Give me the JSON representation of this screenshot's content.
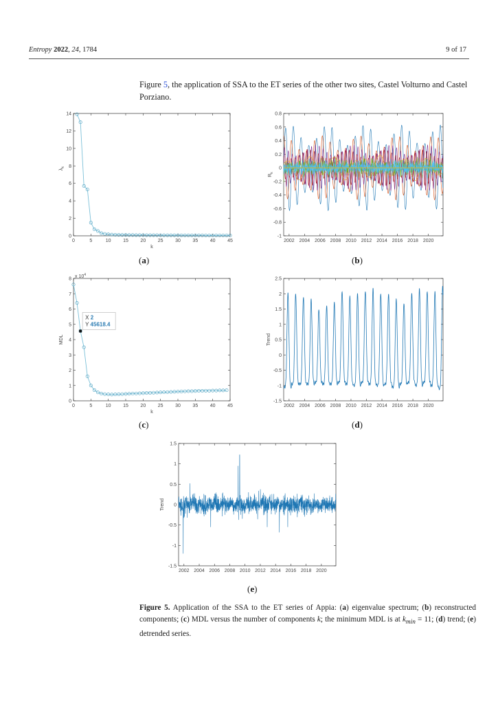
{
  "header": {
    "journal": "Entropy",
    "year": "2022",
    "volume": "24",
    "article": "1784",
    "page": "9 of 17"
  },
  "intro": {
    "before_link": "Figure ",
    "link": "5",
    "after_link": ", the application of SSA to the ET series of the other two sites, Castel Volturno and Castel Porziano."
  },
  "subfigure_labels": [
    "a",
    "b",
    "c",
    "d",
    "e"
  ],
  "caption": {
    "label": "Figure 5.",
    "text_html": "Application of the SSA to the ET series of Appia: (<b>a</b>) eigenvalue spectrum; (<b>b</b>) reconstructed components; (<b>c</b>) MDL versus the number of components <i>k</i>; the minimum MDL is at <i>k</i><sub><i>min</i></sub> = 11; (<b>d</b>) trend; (<b>e</b>) detrended series."
  },
  "colors": {
    "line": "#1f77b4",
    "marker": "#7cc0d8",
    "axis": "#333333",
    "datatip_value": "#2d7db3"
  },
  "chart_data": [
    {
      "id": "a",
      "type": "line",
      "title": "",
      "xlabel": "k",
      "ylabel": "λk",
      "xlim": [
        0,
        45
      ],
      "ylim": [
        0,
        14
      ],
      "xticks": [
        0,
        5,
        10,
        15,
        20,
        25,
        30,
        35,
        40,
        45
      ],
      "yticks": [
        0,
        2,
        4,
        6,
        8,
        10,
        12,
        14
      ],
      "grid": false,
      "markers": "circle",
      "x": [
        1,
        2,
        3,
        4,
        5,
        6,
        7,
        8,
        9,
        10,
        11,
        12,
        13,
        14,
        15,
        16,
        17,
        18,
        19,
        20,
        21,
        22,
        23,
        24,
        25,
        26,
        27,
        28,
        29,
        30,
        31,
        32,
        33,
        34,
        35,
        36,
        37,
        38,
        39,
        40,
        41,
        42,
        43,
        44,
        45
      ],
      "y": [
        13.9,
        13.0,
        5.7,
        5.3,
        1.5,
        0.75,
        0.55,
        0.3,
        0.22,
        0.17,
        0.14,
        0.12,
        0.11,
        0.1,
        0.1,
        0.09,
        0.09,
        0.08,
        0.08,
        0.08,
        0.07,
        0.07,
        0.07,
        0.07,
        0.06,
        0.06,
        0.06,
        0.06,
        0.06,
        0.06,
        0.05,
        0.05,
        0.05,
        0.05,
        0.05,
        0.05,
        0.05,
        0.04,
        0.04,
        0.04,
        0.04,
        0.04,
        0.04,
        0.04,
        0.04
      ]
    },
    {
      "id": "b",
      "type": "line",
      "title": "",
      "xlabel": "",
      "ylabel": "Rk",
      "xlim": [
        2001.3,
        2021.9
      ],
      "ylim": [
        -1,
        0.8
      ],
      "xticks": [
        2002,
        2004,
        2006,
        2008,
        2010,
        2012,
        2014,
        2016,
        2018,
        2020
      ],
      "yticks": [
        -1,
        -0.8,
        -0.6,
        -0.4,
        -0.2,
        0,
        0.2,
        0.4,
        0.6,
        0.8
      ],
      "grid": false,
      "series": [
        {
          "color": "#1f77b4",
          "amplitude": 0.6,
          "period": 1.0,
          "phase": 0.0
        },
        {
          "color": "#d95319",
          "amplitude": 0.45,
          "period": 1.0,
          "phase": 1.57
        },
        {
          "color": "#7e2f8e",
          "amplitude": 0.32,
          "period": 0.5,
          "phase": 0.3
        },
        {
          "color": "#a2142f",
          "amplitude": 0.25,
          "period": 0.5,
          "phase": 1.9
        },
        {
          "color": "#edb120",
          "amplitude": 0.18,
          "period": 3.0,
          "phase": 0.6
        },
        {
          "color": "#77ac30",
          "amplitude": 0.06,
          "period": 0.08,
          "phase": 0.0
        },
        {
          "color": "#4dbeee",
          "amplitude": 0.05,
          "period": 0.06,
          "phase": 1.0
        }
      ]
    },
    {
      "id": "c",
      "type": "line",
      "title": "",
      "xlabel": "k",
      "ylabel": "MDL",
      "yscale_label": "x 10^4",
      "xlim": [
        0,
        45
      ],
      "ylim": [
        0,
        8
      ],
      "xticks": [
        0,
        5,
        10,
        15,
        20,
        25,
        30,
        35,
        40,
        45
      ],
      "yticks": [
        0,
        1,
        2,
        3,
        4,
        5,
        6,
        7,
        8
      ],
      "grid": false,
      "markers": "circle",
      "x": [
        0,
        1,
        2,
        3,
        4,
        5,
        6,
        7,
        8,
        9,
        10,
        11,
        12,
        13,
        14,
        15,
        16,
        17,
        18,
        19,
        20,
        21,
        22,
        23,
        24,
        25,
        26,
        27,
        28,
        29,
        30,
        31,
        32,
        33,
        34,
        35,
        36,
        37,
        38,
        39,
        40,
        41,
        42,
        43,
        44
      ],
      "y": [
        7.6,
        6.4,
        4.56,
        3.5,
        1.6,
        1.0,
        0.7,
        0.55,
        0.47,
        0.44,
        0.42,
        0.41,
        0.42,
        0.43,
        0.44,
        0.45,
        0.46,
        0.47,
        0.48,
        0.49,
        0.5,
        0.51,
        0.52,
        0.53,
        0.54,
        0.55,
        0.56,
        0.57,
        0.58,
        0.59,
        0.6,
        0.61,
        0.62,
        0.63,
        0.63,
        0.64,
        0.65,
        0.65,
        0.66,
        0.66,
        0.67,
        0.67,
        0.68,
        0.68,
        0.69
      ],
      "datatip": {
        "x_label": "X",
        "x_value": "2",
        "y_label": "Y",
        "y_value": "45618.4"
      }
    },
    {
      "id": "d",
      "type": "line",
      "title": "",
      "xlabel": "",
      "ylabel": "Trend",
      "xlim": [
        2001.3,
        2021.9
      ],
      "ylim": [
        -1.5,
        2.5
      ],
      "xticks": [
        2002,
        2004,
        2006,
        2008,
        2010,
        2012,
        2014,
        2016,
        2018,
        2020
      ],
      "yticks": [
        -1.5,
        -1,
        -0.5,
        0,
        0.5,
        1,
        1.5,
        2,
        2.5
      ],
      "grid": false,
      "peaks": [
        2.0,
        2.0,
        1.9,
        1.8,
        1.5,
        1.6,
        1.7,
        2.1,
        1.9,
        2.0,
        2.1,
        2.15,
        2.0,
        2.0,
        1.8,
        1.7,
        2.0,
        2.15,
        2.1,
        2.05,
        2.25
      ],
      "troughs": [
        -1.05,
        -0.95,
        -0.95,
        -0.95,
        -0.9,
        -0.95,
        -0.95,
        -0.9,
        -0.95,
        -1.0,
        -0.9,
        -0.95,
        -1.0,
        -0.95,
        -1.05,
        -0.95,
        -0.9,
        -1.0,
        -0.9,
        -1.0,
        -1.1
      ]
    },
    {
      "id": "e",
      "type": "line",
      "title": "",
      "xlabel": "",
      "ylabel": "Trend",
      "xlim": [
        2001.3,
        2021.9
      ],
      "ylim": [
        -1.5,
        1.5
      ],
      "xticks": [
        2002,
        2004,
        2006,
        2008,
        2010,
        2012,
        2014,
        2016,
        2018,
        2020
      ],
      "yticks": [
        -1.5,
        -1,
        -0.5,
        0,
        0.5,
        1,
        1.5
      ],
      "grid": false,
      "noise_sd": 0.1,
      "spikes": [
        {
          "x": 2009.3,
          "y": 1.22
        },
        {
          "x": 2009.1,
          "y": 0.95
        },
        {
          "x": 2001.9,
          "y": -1.2
        },
        {
          "x": 2014.5,
          "y": -0.68
        },
        {
          "x": 2015.6,
          "y": -0.55
        },
        {
          "x": 2005.5,
          "y": -0.55
        },
        {
          "x": 2012.9,
          "y": -0.55
        },
        {
          "x": 2002.8,
          "y": 0.52
        }
      ]
    }
  ]
}
